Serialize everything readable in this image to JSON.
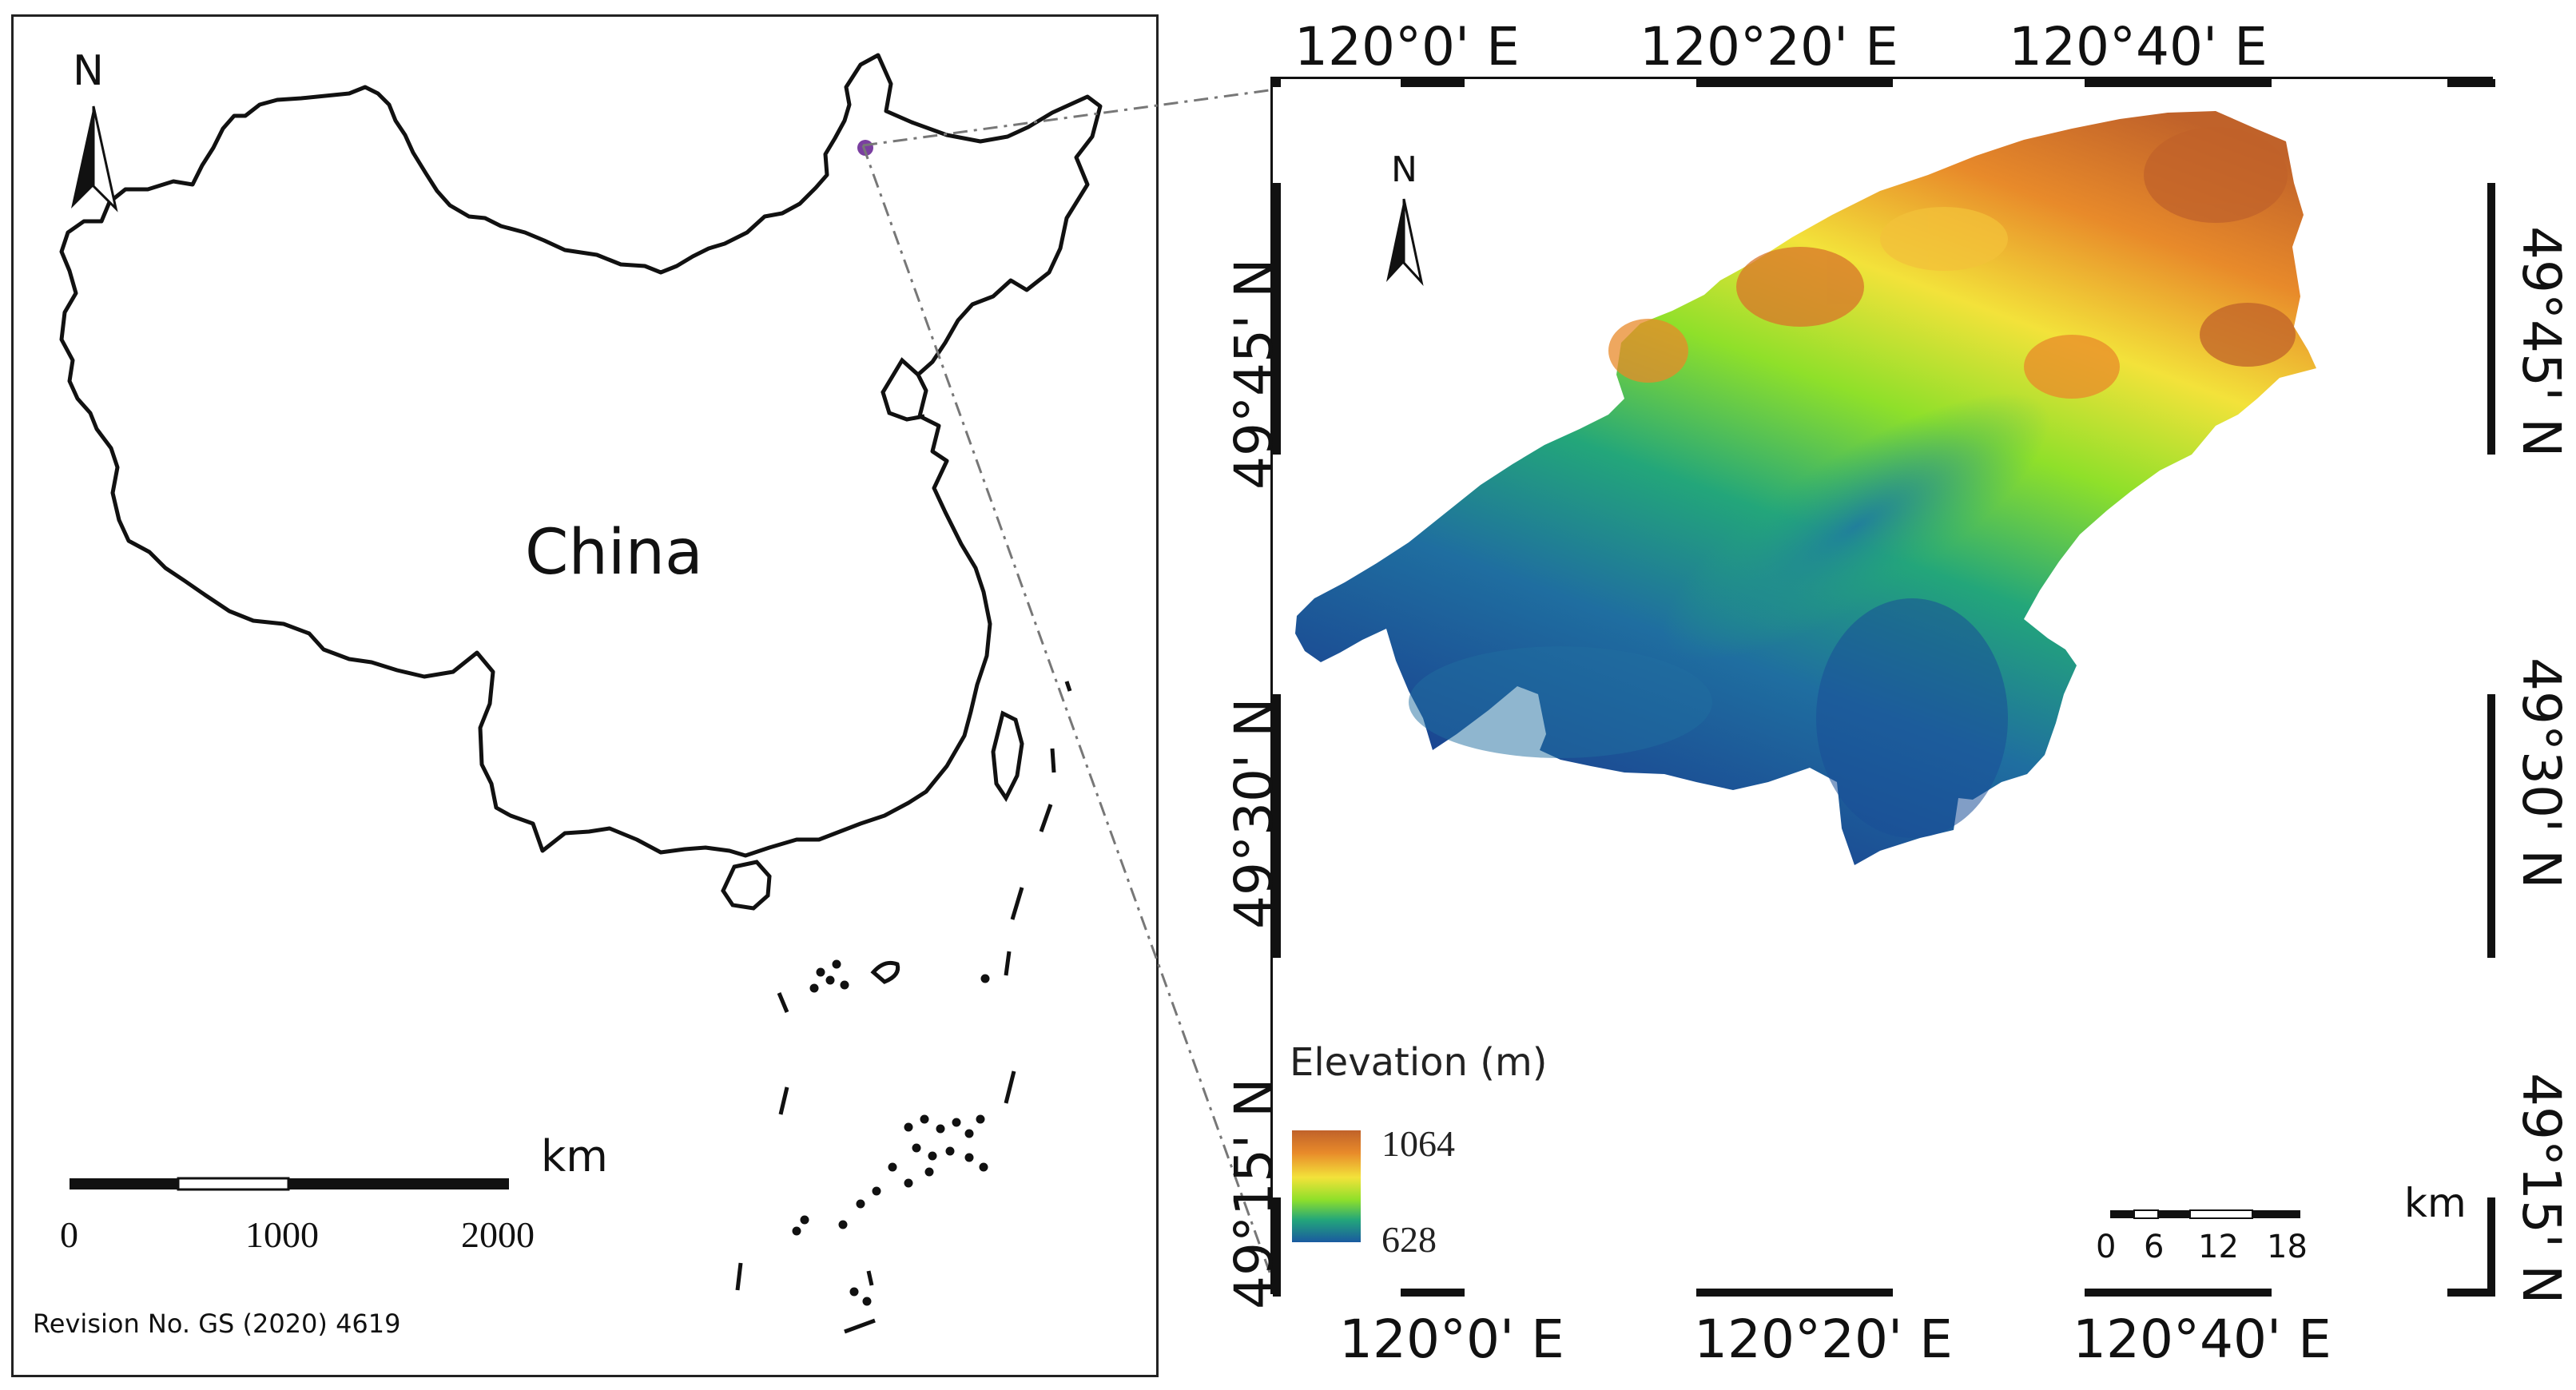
{
  "left_map": {
    "country_label": "China",
    "north_label": "N",
    "scale": {
      "unit": "km",
      "ticks": [
        "0",
        "1000",
        "2000"
      ]
    },
    "revision": "Revision No. GS (2020) 4619"
  },
  "right_map": {
    "north_label": "N",
    "top_longitudes": [
      "120°0' E",
      "120°20' E",
      "120°40' E"
    ],
    "bottom_longitudes": [
      "120°0' E",
      "120°20' E",
      "120°40' E"
    ],
    "left_latitudes": [
      "49°45' N",
      "49°30' N",
      "49°15' N"
    ],
    "right_latitudes": [
      "49°45' N",
      "49°30' N",
      "49°15' N"
    ],
    "legend": {
      "title": "Elevation (m)",
      "max": "1064",
      "min": "628",
      "colors": [
        "#c0622a",
        "#e88a2a",
        "#f3e23a",
        "#8fe02a",
        "#23a67a",
        "#1a5aa0"
      ]
    },
    "scale": {
      "unit": "km",
      "ticks": [
        "0",
        "6",
        "12",
        "18"
      ]
    }
  },
  "study_point_color": "#7a3fa0"
}
